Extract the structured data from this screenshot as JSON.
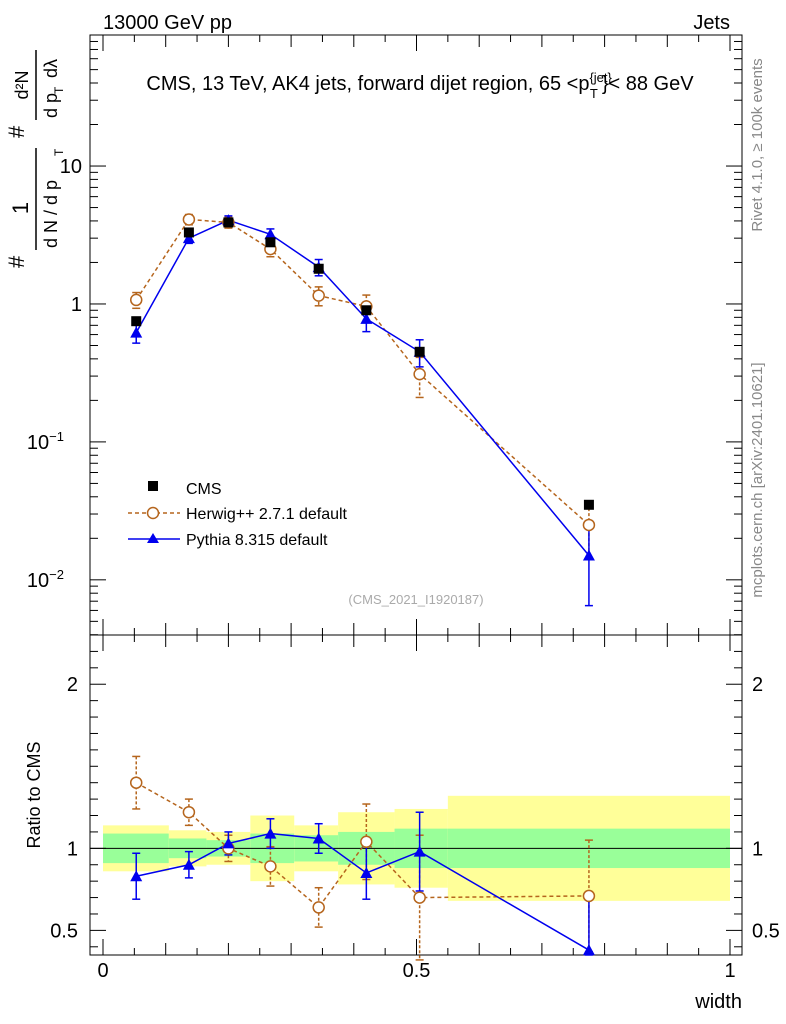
{
  "header": {
    "left": "13000 GeV pp",
    "right": "Jets"
  },
  "side": {
    "rivet": "Rivet 4.1.0, ≥ 100k events",
    "mcplots": "mcplots.cern.ch [arXiv:2401.10621]"
  },
  "chart_data": {
    "type": "line",
    "title": "CMS, 13 TeV, AK4 jets, forward dijet region, 65 <p",
    "title_super": "{jet}",
    "title_sub": "T",
    "title_end": "}< 88 GeV",
    "ylabel": {
      "hash": "#",
      "frac1_num": "1",
      "frac1_den": "d N / d p",
      "frac1_den_sub": "T",
      "hash2": "#",
      "frac2_num": "d²N",
      "frac2_den": "d p",
      "frac2_den_sub": "T",
      "frac2_den_end": "dλ"
    },
    "ratio_ylabel": "Ratio to CMS",
    "xlabel": "width",
    "watermark": "(CMS_2021_I1920187)",
    "xlim": [
      0,
      1
    ],
    "main_ylim_log10": [
      -2.4,
      1.95
    ],
    "ratio_ylim": [
      0.35,
      2.3
    ],
    "x_ticks": [
      "0",
      "0.5",
      "1"
    ],
    "main_y_ticks": [
      {
        "base": "10",
        "exp": "−2",
        "value": 0.01
      },
      {
        "base": "10",
        "exp": "−1",
        "value": 0.1
      },
      {
        "base": "1",
        "exp": "",
        "value": 1
      },
      {
        "base": "10",
        "exp": "",
        "value": 10
      }
    ],
    "ratio_y_ticks": [
      "0.5",
      "1",
      "2"
    ],
    "ratio_y_tick_values": [
      0.5,
      1,
      2
    ],
    "bins": [
      [
        0.0,
        0.105
      ],
      [
        0.105,
        0.165
      ],
      [
        0.165,
        0.235
      ],
      [
        0.235,
        0.305
      ],
      [
        0.305,
        0.375
      ],
      [
        0.375,
        0.465
      ],
      [
        0.465,
        0.55
      ],
      [
        0.55,
        1.0
      ]
    ],
    "x": [
      0.053,
      0.137,
      0.2,
      0.267,
      0.344,
      0.42,
      0.505,
      0.775
    ],
    "series": [
      {
        "name": "CMS",
        "color": "#000000",
        "marker": "square",
        "values": [
          0.75,
          3.3,
          3.9,
          2.8,
          1.8,
          0.9,
          0.45,
          0.035
        ],
        "band_green": [
          0.09,
          0.06,
          0.05,
          0.09,
          0.08,
          0.1,
          0.12,
          0.12
        ],
        "band_yellow": [
          0.14,
          0.11,
          0.1,
          0.2,
          0.14,
          0.22,
          0.24,
          0.32
        ]
      },
      {
        "name": "Herwig++ 2.7.1 default",
        "color": "#b5651d",
        "marker": "open-circle",
        "dashed": true,
        "values": [
          1.07,
          4.1,
          3.9,
          2.5,
          1.15,
          0.96,
          0.31,
          0.025
        ],
        "errors": [
          0.14,
          0.35,
          0.35,
          0.3,
          0.18,
          0.2,
          0.1,
          0.011
        ],
        "ratio": [
          1.4,
          1.22,
          1.0,
          0.89,
          0.64,
          1.04,
          0.7,
          0.71
        ],
        "ratio_errors": [
          0.16,
          0.08,
          0.08,
          0.12,
          0.12,
          0.23,
          0.38,
          0.34
        ]
      },
      {
        "name": "Pythia 8.315 default",
        "color": "#0000ee",
        "marker": "triangle",
        "values": [
          0.62,
          3.0,
          4.05,
          3.2,
          1.85,
          0.78,
          0.45,
          0.015
        ],
        "errors": [
          0.1,
          0.25,
          0.3,
          0.3,
          0.25,
          0.15,
          0.1,
          0.0085
        ],
        "ratio": [
          0.83,
          0.9,
          1.03,
          1.09,
          1.06,
          0.85,
          0.98,
          0.38
        ],
        "ratio_errors": [
          0.14,
          0.08,
          0.07,
          0.09,
          0.09,
          0.16,
          0.24,
          0.34
        ]
      }
    ]
  }
}
